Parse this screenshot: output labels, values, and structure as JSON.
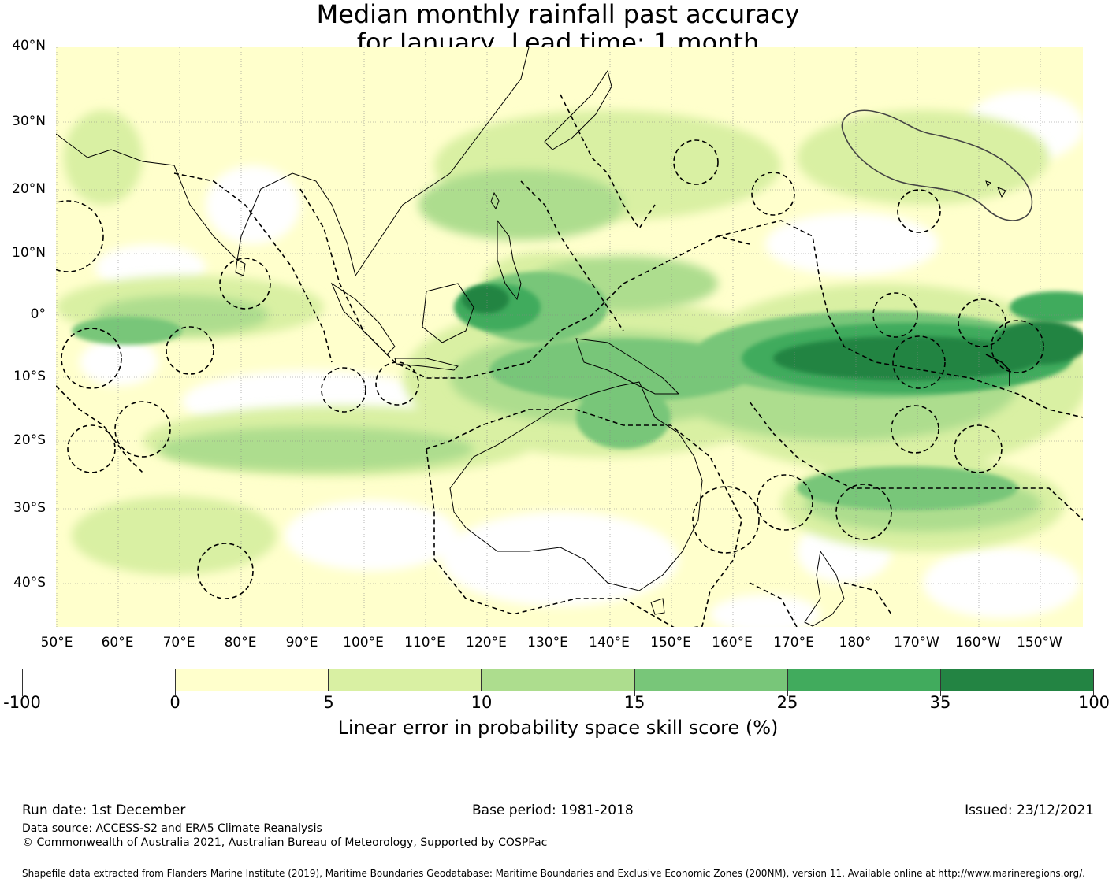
{
  "title": {
    "line1": "Median monthly rainfall past accuracy",
    "line2": "for January, Lead time: 1 month"
  },
  "map": {
    "lat_labels": [
      "40°N",
      "30°N",
      "20°N",
      "10°N",
      "0°",
      "10°S",
      "20°S",
      "30°S",
      "40°S"
    ],
    "lon_labels": [
      "50°E",
      "60°E",
      "70°E",
      "80°E",
      "90°E",
      "100°E",
      "110°E",
      "120°E",
      "130°E",
      "140°E",
      "150°E",
      "160°E",
      "170°E",
      "180°",
      "170°W",
      "160°W",
      "150°W"
    ],
    "colors": {
      "lt0": "#ffffff",
      "c0_5": "#ffffcc",
      "c5_10": "#d9f0a3",
      "c10_15": "#addd8e",
      "c15_25": "#78c679",
      "c25_35": "#41ab5d",
      "c35_100": "#238443",
      "coast": "#000000",
      "boundary": "#000000"
    }
  },
  "colorbar": {
    "ticks": [
      "-100",
      "0",
      "5",
      "10",
      "15",
      "25",
      "35",
      "100"
    ],
    "colors": [
      "#ffffff",
      "#ffffcc",
      "#d9f0a3",
      "#addd8e",
      "#78c679",
      "#41ab5d",
      "#238443"
    ],
    "label": "Linear error in probability space skill score (%)"
  },
  "footer": {
    "run_date": "Run date: 1st December",
    "base_period": "Base period: 1981-2018",
    "issued": "Issued: 23/12/2021",
    "data_source": "Data source: ACCESS-S2 and ERA5 Climate Reanalysis",
    "copyright": "© Commonwealth of Australia 2021, Australian Bureau of Meteorology, Supported by COSPPac",
    "shapefile": "Shapefile data extracted from Flanders Marine Institute (2019), Maritime Boundaries Geodatabase: Maritime Boundaries and Exclusive Economic Zones (200NM), version 11. Available online at http://www.marineregions.org/."
  }
}
